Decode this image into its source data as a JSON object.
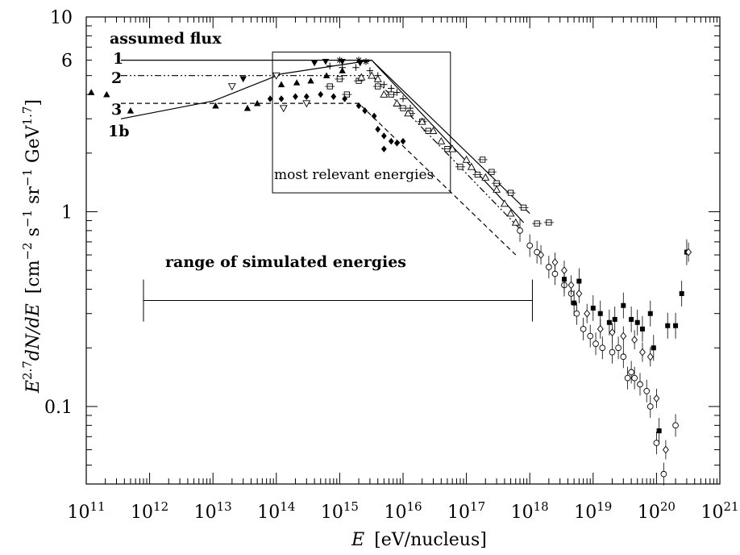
{
  "chart_data": {
    "type": "scatter",
    "title": "",
    "xscale": "log",
    "yscale": "log",
    "xlim": [
      100000000000.0,
      1e+21
    ],
    "ylim": [
      0.04,
      10
    ],
    "xlabel": {
      "symbol": "E",
      "unit": "[eV/nucleus]"
    },
    "ylabel": {
      "pre": "E",
      "pre_exp": "2.7",
      "mid": "dN/dE",
      "unit_open": "[cm",
      "exp_a": "−2",
      "part_b": " s",
      "exp_b": "−1",
      "part_c": " sr",
      "exp_c": "−1",
      "part_d": " GeV",
      "exp_d": "1.7",
      "unit_close": "]"
    },
    "x_ticks": [
      {
        "base": "10",
        "exp": "11",
        "value": 100000000000.0
      },
      {
        "base": "10",
        "exp": "12",
        "value": 1000000000000.0
      },
      {
        "base": "10",
        "exp": "13",
        "value": 10000000000000.0
      },
      {
        "base": "10",
        "exp": "14",
        "value": 100000000000000.0
      },
      {
        "base": "10",
        "exp": "15",
        "value": 1000000000000000.0
      },
      {
        "base": "10",
        "exp": "16",
        "value": 1e+16
      },
      {
        "base": "10",
        "exp": "17",
        "value": 1e+17
      },
      {
        "base": "10",
        "exp": "18",
        "value": 1e+18
      },
      {
        "base": "10",
        "exp": "19",
        "value": 1e+19
      },
      {
        "base": "10",
        "exp": "20",
        "value": 1e+20
      },
      {
        "base": "10",
        "exp": "21",
        "value": 1e+21
      }
    ],
    "y_ticks": [
      {
        "label": "10",
        "value": 10
      },
      {
        "label": "6",
        "value": 6
      },
      {
        "label": "1",
        "value": 1
      },
      {
        "label": "0.1",
        "value": 0.1
      }
    ],
    "annotations": {
      "assumed_flux": "assumed  flux",
      "flux_labels": [
        "1",
        "2",
        "3",
        "1b"
      ],
      "relevant_box_label": "most relevant energies",
      "relevant_box": {
        "x0": 87000000000000.0,
        "x1": 5.6e+16,
        "y0": 1.25,
        "y1": 6.6
      },
      "sim_range_label": "range of simulated  energies",
      "sim_range": {
        "x0": 800000000000.0,
        "x1": 1.1e+18,
        "y": 0.35
      }
    },
    "flux_models": [
      {
        "name": "1",
        "style": "solid",
        "points": [
          [
            100000000000.0,
            6.0
          ],
          [
            3200000000000000.0,
            6.0
          ],
          [
            8e+17,
            0.88
          ]
        ]
      },
      {
        "name": "2",
        "style": "dash-dot-dot",
        "points": [
          [
            100000000000.0,
            5.0
          ],
          [
            3200000000000000.0,
            5.0
          ],
          [
            8e+17,
            0.78
          ]
        ]
      },
      {
        "name": "3",
        "style": "dashed",
        "points": [
          [
            100000000000.0,
            3.6
          ],
          [
            2000000000000000.0,
            3.6
          ],
          [
            6e+17,
            0.6
          ]
        ]
      },
      {
        "name": "1b",
        "style": "solid",
        "points": [
          [
            100000000000.0,
            3.0
          ],
          [
            10000000000000.0,
            3.7
          ],
          [
            120000000000000.0,
            5.1
          ],
          [
            3200000000000000.0,
            6.0
          ],
          [
            1e+18,
            0.98
          ]
        ]
      }
    ],
    "series": [
      {
        "marker": "filled-triangle-up",
        "points": [
          [
            120000000000.0,
            4.1
          ],
          [
            210000000000.0,
            4.0
          ],
          [
            500000000000.0,
            3.3
          ],
          [
            11000000000000.0,
            3.5
          ],
          [
            35000000000000.0,
            3.4
          ],
          [
            50000000000000.0,
            3.6
          ],
          [
            120000000000000.0,
            4.5
          ],
          [
            210000000000000.0,
            4.6
          ],
          [
            350000000000000.0,
            4.7
          ],
          [
            620000000000000.0,
            5.0
          ],
          [
            1100000000000000.0,
            5.3
          ]
        ]
      },
      {
        "marker": "filled-triangle-down",
        "points": [
          [
            30000000000000.0,
            4.8
          ],
          [
            400000000000000.0,
            5.8
          ],
          [
            600000000000000.0,
            5.9
          ],
          [
            1100000000000000.0,
            5.9
          ],
          [
            2100000000000000.0,
            5.8
          ]
        ]
      },
      {
        "marker": "open-triangle-down",
        "points": [
          [
            20000000000000.0,
            4.4
          ],
          [
            130000000000000.0,
            3.4
          ],
          [
            300000000000000.0,
            3.6
          ],
          [
            100000000000000.0,
            5.0
          ]
        ]
      },
      {
        "marker": "star",
        "points": [
          [
            1000000000000000.0,
            6.0
          ],
          [
            2000000000000000.0,
            6.0
          ],
          [
            2600000000000000.0,
            5.9
          ]
        ]
      },
      {
        "marker": "plus",
        "points": [
          [
            700000000000000.0,
            5.6
          ],
          [
            1100000000000000.0,
            5.5
          ],
          [
            1800000000000000.0,
            5.5
          ],
          [
            3000000000000000.0,
            5.3
          ],
          [
            4000000000000000.0,
            5.0
          ],
          [
            5000000000000000.0,
            4.5
          ],
          [
            6500000000000000.0,
            4.3
          ],
          [
            8000000000000000.0,
            4.1
          ],
          [
            1e+16,
            3.8
          ],
          [
            1.3e+16,
            3.4
          ]
        ]
      },
      {
        "marker": "open-square-dot",
        "points": [
          [
            700000000000000.0,
            4.4
          ],
          [
            1000000000000000.0,
            4.8
          ],
          [
            1300000000000000.0,
            4.0
          ],
          [
            2000000000000000.0,
            4.7
          ],
          [
            4000000000000000.0,
            4.4
          ],
          [
            6500000000000000.0,
            4.0
          ],
          [
            1e+16,
            3.4
          ],
          [
            1.3e+16,
            3.2
          ],
          [
            2e+16,
            2.9
          ],
          [
            2.5e+16,
            2.6
          ],
          [
            5e+16,
            2.1
          ],
          [
            8e+16,
            1.7
          ],
          [
            1.5e+17,
            1.55
          ],
          [
            1.8e+17,
            1.85
          ],
          [
            2.5e+17,
            1.6
          ],
          [
            3e+17,
            1.4
          ],
          [
            5e+17,
            1.25
          ],
          [
            8e+17,
            1.05
          ],
          [
            1.3e+18,
            0.87
          ],
          [
            2e+18,
            0.88
          ]
        ]
      },
      {
        "marker": "filled-diamond",
        "points": [
          [
            80000000000000.0,
            3.8
          ],
          [
            120000000000000.0,
            3.8
          ],
          [
            200000000000000.0,
            3.9
          ],
          [
            300000000000000.0,
            3.9
          ],
          [
            500000000000000.0,
            4.0
          ],
          [
            800000000000000.0,
            3.9
          ],
          [
            1200000000000000.0,
            3.8
          ],
          [
            2000000000000000.0,
            3.5
          ],
          [
            2500000000000000.0,
            3.3
          ],
          [
            3500000000000000.0,
            3.1
          ],
          [
            4000000000000000.0,
            2.65
          ],
          [
            5000000000000000.0,
            2.45
          ],
          [
            6500000000000000.0,
            2.3
          ],
          [
            8000000000000000.0,
            2.25
          ],
          [
            1e+16,
            2.3
          ],
          [
            5000000000000000.0,
            2.1
          ]
        ]
      },
      {
        "marker": "open-triangle-up",
        "points": [
          [
            2200000000000000.0,
            4.9
          ],
          [
            3200000000000000.0,
            5.0
          ],
          [
            4000000000000000.0,
            4.8
          ],
          [
            5000000000000000.0,
            4.0
          ],
          [
            8000000000000000.0,
            3.6
          ],
          [
            1.2e+16,
            3.2
          ],
          [
            2e+16,
            2.9
          ],
          [
            3e+16,
            2.6
          ],
          [
            4e+16,
            2.3
          ],
          [
            6e+16,
            2.1
          ],
          [
            1e+17,
            1.85
          ],
          [
            1.2e+17,
            1.7
          ],
          [
            2e+17,
            1.5
          ],
          [
            3e+17,
            1.3
          ],
          [
            4e+17,
            1.1
          ],
          [
            5e+17,
            0.98
          ],
          [
            6e+17,
            0.88
          ]
        ]
      },
      {
        "marker": "open-circle-errorbar",
        "points": [
          [
            7e+17,
            0.8
          ],
          [
            1e+18,
            0.67
          ],
          [
            1.3e+18,
            0.62
          ],
          [
            2e+18,
            0.52
          ],
          [
            2.5e+18,
            0.48
          ],
          [
            3.5e+18,
            0.42
          ],
          [
            4.5e+18,
            0.38
          ],
          [
            5.5e+18,
            0.3
          ],
          [
            7e+18,
            0.25
          ],
          [
            9e+18,
            0.23
          ],
          [
            1.1e+19,
            0.21
          ],
          [
            1.4e+19,
            0.2
          ],
          [
            2e+19,
            0.19
          ],
          [
            2.5e+19,
            0.2
          ],
          [
            3e+19,
            0.18
          ],
          [
            3.5e+19,
            0.14
          ],
          [
            4e+19,
            0.15
          ],
          [
            4.5e+19,
            0.14
          ],
          [
            5.5e+19,
            0.13
          ],
          [
            7e+19,
            0.12
          ],
          [
            8e+19,
            0.1
          ],
          [
            1e+20,
            0.065
          ],
          [
            1.3e+20,
            0.045
          ],
          [
            2e+20,
            0.08
          ]
        ]
      },
      {
        "marker": "filled-square-errorbar",
        "points": [
          [
            3.5e+18,
            0.45
          ],
          [
            5e+18,
            0.34
          ],
          [
            6e+18,
            0.44
          ],
          [
            1e+19,
            0.32
          ],
          [
            1.3e+19,
            0.3
          ],
          [
            1.8e+19,
            0.27
          ],
          [
            2.2e+19,
            0.28
          ],
          [
            3e+19,
            0.33
          ],
          [
            4e+19,
            0.28
          ],
          [
            5e+19,
            0.27
          ],
          [
            6e+19,
            0.25
          ],
          [
            8e+19,
            0.3
          ],
          [
            9e+19,
            0.2
          ],
          [
            1.1e+20,
            0.075
          ],
          [
            1.5e+20,
            0.26
          ],
          [
            2e+20,
            0.26
          ],
          [
            2.5e+20,
            0.38
          ],
          [
            3e+20,
            0.62
          ]
        ]
      },
      {
        "marker": "open-diamond-errorbar",
        "points": [
          [
            1.5e+18,
            0.6
          ],
          [
            2.5e+18,
            0.55
          ],
          [
            3.5e+18,
            0.5
          ],
          [
            4.5e+18,
            0.42
          ],
          [
            6e+18,
            0.38
          ],
          [
            8e+18,
            0.3
          ],
          [
            1.3e+19,
            0.25
          ],
          [
            2e+19,
            0.24
          ],
          [
            3e+19,
            0.23
          ],
          [
            4.5e+19,
            0.22
          ],
          [
            6e+19,
            0.19
          ],
          [
            8e+19,
            0.18
          ],
          [
            1e+20,
            0.11
          ],
          [
            1.4e+20,
            0.06
          ],
          [
            3.2e+20,
            0.62
          ]
        ]
      }
    ]
  }
}
